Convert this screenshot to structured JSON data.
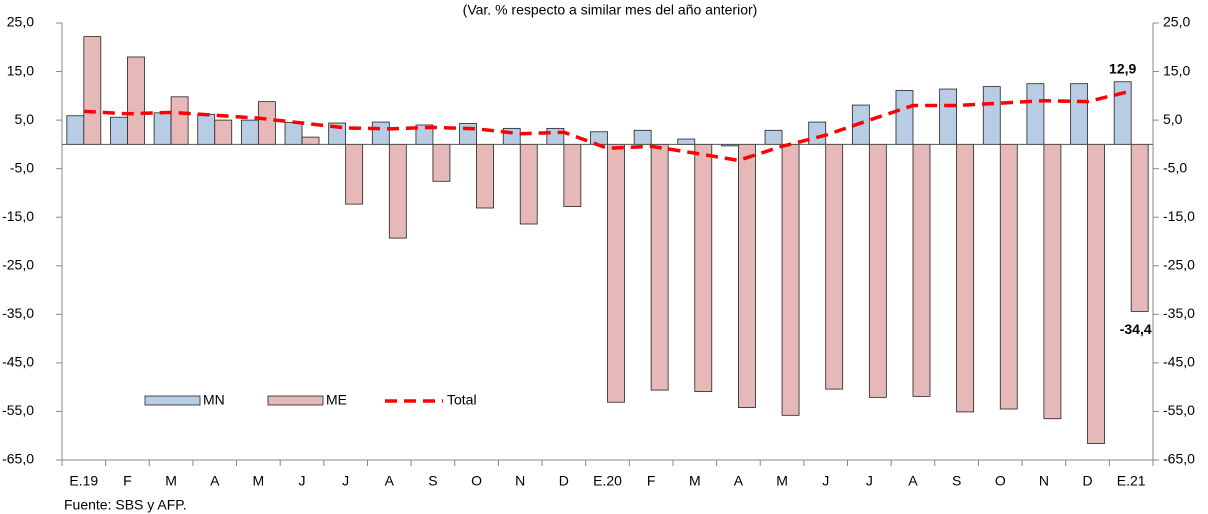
{
  "chart_data": {
    "type": "bar",
    "subtitle": "(Var. % respecto a similar mes del año anterior)",
    "source": "Fuente: SBS y AFP.",
    "categories": [
      "E.19",
      "F",
      "M",
      "A",
      "M",
      "J",
      "J",
      "A",
      "S",
      "O",
      "N",
      "D",
      "E.20",
      "F",
      "M",
      "A",
      "M",
      "J",
      "J",
      "A",
      "S",
      "O",
      "N",
      "D",
      "E.21"
    ],
    "series": [
      {
        "name": "MN",
        "type": "bar",
        "color": "#b8cce4",
        "values": [
          5.9,
          5.6,
          6.5,
          6.2,
          5.0,
          4.5,
          4.4,
          4.6,
          4.0,
          4.3,
          3.3,
          3.3,
          2.6,
          2.9,
          1.1,
          -0.3,
          2.9,
          4.6,
          8.1,
          11.1,
          11.4,
          11.9,
          12.5,
          12.5,
          12.9
        ],
        "value_labels": [
          null,
          null,
          null,
          null,
          null,
          null,
          null,
          null,
          null,
          null,
          null,
          null,
          null,
          null,
          null,
          null,
          null,
          null,
          null,
          null,
          null,
          null,
          null,
          null,
          "12,9"
        ]
      },
      {
        "name": "ME",
        "type": "bar",
        "color": "#e6b9b8",
        "values": [
          22.2,
          18.0,
          9.8,
          5.0,
          8.8,
          1.5,
          -12.3,
          -19.3,
          -7.6,
          -13.1,
          -16.4,
          -12.8,
          -53.1,
          -50.6,
          -50.9,
          -54.2,
          -55.8,
          -50.4,
          -52.1,
          -51.9,
          -55.1,
          -54.5,
          -56.5,
          -61.6,
          -34.4
        ],
        "value_labels": [
          null,
          null,
          null,
          null,
          null,
          null,
          null,
          null,
          null,
          null,
          null,
          null,
          null,
          null,
          null,
          null,
          null,
          null,
          null,
          null,
          null,
          null,
          null,
          null,
          "-34,4"
        ]
      },
      {
        "name": "Total",
        "type": "line",
        "color": "#ff0000",
        "values": [
          6.8,
          6.3,
          6.6,
          6.0,
          5.4,
          4.4,
          3.4,
          3.2,
          3.5,
          3.2,
          2.2,
          2.5,
          -0.8,
          -0.4,
          -1.8,
          -3.3,
          -0.4,
          1.9,
          5.0,
          8.0,
          8.0,
          8.5,
          9.0,
          8.8,
          11.0
        ]
      }
    ],
    "ylim": [
      -65,
      25
    ],
    "yticks": [
      {
        "value": 25,
        "label": "25,0"
      },
      {
        "value": 15,
        "label": "15,0"
      },
      {
        "value": 5,
        "label": "5,0"
      },
      {
        "value": -5,
        "label": "-5,0"
      },
      {
        "value": -15,
        "label": "-15,0"
      },
      {
        "value": -25,
        "label": "-25,0"
      },
      {
        "value": -35,
        "label": "-35,0"
      },
      {
        "value": -45,
        "label": "-45,0"
      },
      {
        "value": -55,
        "label": "-55,0"
      },
      {
        "value": -65,
        "label": "-65,0"
      }
    ],
    "y2lim": [
      -65,
      25
    ],
    "y2ticks": [
      {
        "value": 25,
        "label": "25,0"
      },
      {
        "value": 15,
        "label": "15,0"
      },
      {
        "value": 5,
        "label": "5,0"
      },
      {
        "value": -5,
        "label": "-5,0"
      },
      {
        "value": -15,
        "label": "-15,0"
      },
      {
        "value": -25,
        "label": "-25,0"
      },
      {
        "value": -35,
        "label": "-35,0"
      },
      {
        "value": -45,
        "label": "-45,0"
      },
      {
        "value": -55,
        "label": "-55,0"
      },
      {
        "value": -65,
        "label": "-65,0"
      }
    ],
    "grid": false,
    "legend": "bottom-left"
  }
}
